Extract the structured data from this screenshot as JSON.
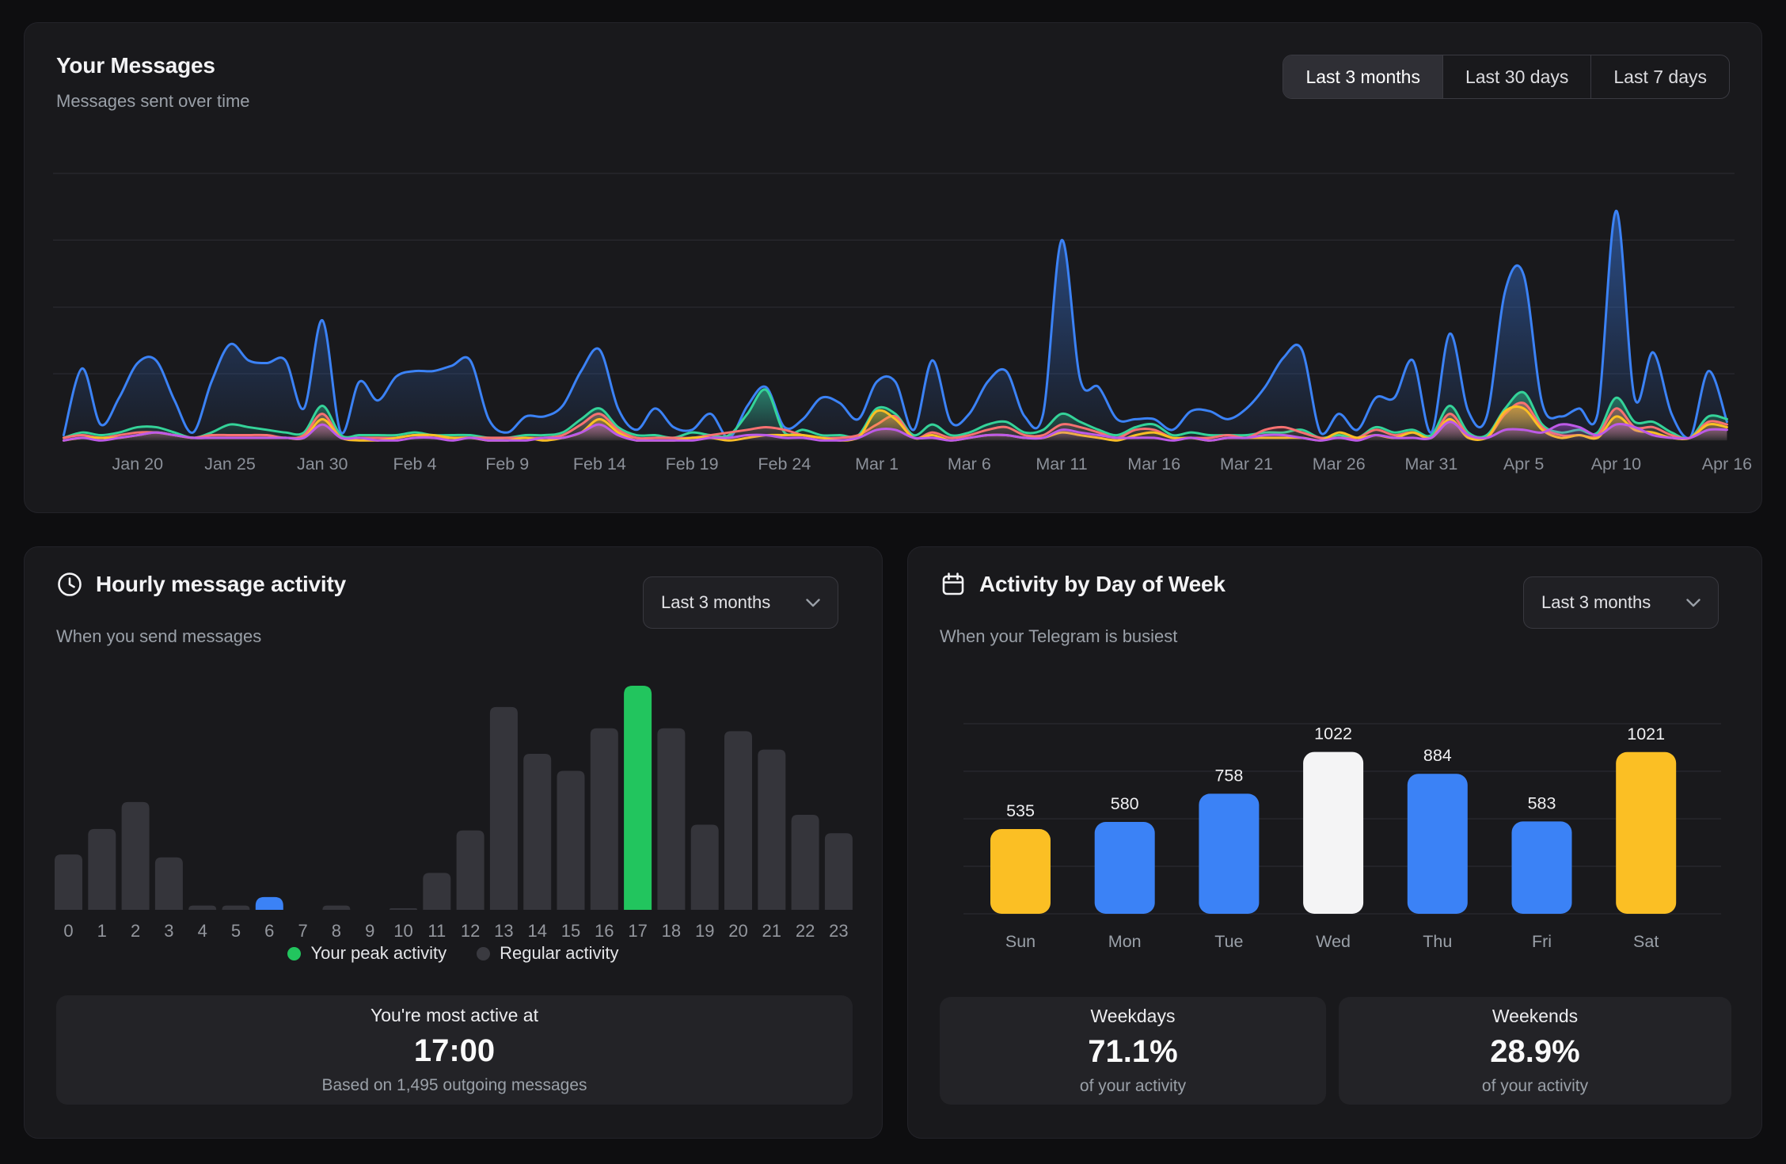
{
  "messages_panel": {
    "title": "Your Messages",
    "subtitle": "Messages sent over time",
    "time_ranges": [
      {
        "label": "Last 3 months",
        "active": true
      },
      {
        "label": "Last 30 days",
        "active": false
      },
      {
        "label": "Last 7 days",
        "active": false
      }
    ]
  },
  "hourly_panel": {
    "title": "Hourly message activity",
    "subtitle": "When you send messages",
    "dropdown_value": "Last 3 months",
    "legend": [
      {
        "label": "Your peak activity",
        "color": "#22c55e"
      },
      {
        "label": "Regular activity",
        "color": "#3a3a40"
      }
    ],
    "summary": {
      "line1": "You're most active at",
      "value": "17:00",
      "line2": "Based on 1,495 outgoing messages"
    }
  },
  "dow_panel": {
    "title": "Activity by Day of Week",
    "subtitle": "When your Telegram is busiest",
    "dropdown_value": "Last 3 months",
    "summary_cards": [
      {
        "title": "Weekdays",
        "value": "71.1%",
        "caption": "of your activity"
      },
      {
        "title": "Weekends",
        "value": "28.9%",
        "caption": "of your activity"
      }
    ]
  },
  "colors": {
    "page_bg": "#0e0e10",
    "panel_bg": "#19191c",
    "card_bg": "#232327",
    "gridline": "#27272c",
    "axis_text": "#8b9099",
    "bar_gray": "#35353b",
    "accent_blue": "#3b82f6",
    "accent_green": "#22c55e",
    "accent_amber": "#fbbf24",
    "accent_white": "#f4f4f5"
  },
  "chart_data": [
    {
      "type": "area",
      "title": "Your Messages",
      "x_start": "Jan 16",
      "x_end": "Apr 16",
      "x_step": "1 day",
      "x_ticks": [
        {
          "label": "Jan 20",
          "day": 4
        },
        {
          "label": "Jan 25",
          "day": 9
        },
        {
          "label": "Jan 30",
          "day": 14
        },
        {
          "label": "Feb 4",
          "day": 19
        },
        {
          "label": "Feb 9",
          "day": 24
        },
        {
          "label": "Feb 14",
          "day": 29
        },
        {
          "label": "Feb 19",
          "day": 34
        },
        {
          "label": "Feb 24",
          "day": 39
        },
        {
          "label": "Mar 1",
          "day": 44
        },
        {
          "label": "Mar 6",
          "day": 49
        },
        {
          "label": "Mar 11",
          "day": 54
        },
        {
          "label": "Mar 16",
          "day": 59
        },
        {
          "label": "Mar 21",
          "day": 64
        },
        {
          "label": "Mar 26",
          "day": 69
        },
        {
          "label": "Mar 31",
          "day": 74
        },
        {
          "label": "Apr 5",
          "day": 79
        },
        {
          "label": "Apr 10",
          "day": 84
        },
        {
          "label": "Apr 16",
          "day": 90
        }
      ],
      "y_axis_labels": "hidden",
      "y_gridline_step": 25,
      "ylim": [
        0,
        115
      ],
      "series": [
        {
          "name": "series-blue",
          "color": "#3b82f6",
          "values": [
            2,
            27,
            6,
            16,
            29,
            30,
            15,
            3,
            22,
            36,
            30,
            29,
            30,
            12,
            45,
            3,
            22,
            15,
            24,
            26,
            26,
            28,
            30,
            8,
            3,
            9,
            9,
            13,
            26,
            34,
            12,
            4,
            12,
            5,
            4,
            10,
            1,
            13,
            20,
            5,
            8,
            16,
            14,
            8,
            22,
            22,
            4,
            30,
            7,
            10,
            22,
            26,
            9,
            10,
            75,
            23,
            20,
            8,
            8,
            8,
            4,
            11,
            11,
            8,
            12,
            20,
            31,
            34,
            3,
            10,
            4,
            16,
            16,
            30,
            3,
            40,
            11,
            9,
            56,
            62,
            14,
            9,
            12,
            10,
            86,
            16,
            33,
            10,
            1,
            26,
            7
          ]
        },
        {
          "name": "series-green",
          "color": "#34d399",
          "values": [
            1,
            3,
            2,
            3,
            5,
            5,
            3,
            1,
            3,
            6,
            5,
            4,
            3,
            3,
            13,
            2,
            2,
            2,
            2,
            3,
            2,
            2,
            2,
            1,
            1,
            2,
            2,
            3,
            8,
            12,
            5,
            2,
            2,
            1,
            3,
            2,
            2,
            10,
            19,
            3,
            4,
            2,
            2,
            2,
            12,
            10,
            2,
            6,
            2,
            3,
            6,
            7,
            3,
            4,
            10,
            7,
            4,
            2,
            5,
            6,
            2,
            3,
            2,
            2,
            2,
            3,
            3,
            4,
            1,
            2,
            1,
            5,
            3,
            4,
            2,
            13,
            3,
            2,
            12,
            18,
            6,
            3,
            4,
            3,
            16,
            7,
            7,
            3,
            1,
            9,
            8
          ]
        },
        {
          "name": "series-pink",
          "color": "#f87171",
          "values": [
            1,
            2,
            1,
            2,
            3,
            3,
            2,
            1,
            2,
            2,
            2,
            2,
            1,
            2,
            10,
            1,
            1,
            1,
            1,
            2,
            1,
            1,
            1,
            1,
            1,
            1,
            1,
            2,
            6,
            10,
            4,
            1,
            1,
            1,
            1,
            2,
            3,
            4,
            5,
            4,
            2,
            1,
            1,
            2,
            6,
            9,
            1,
            3,
            1,
            2,
            4,
            5,
            2,
            2,
            6,
            5,
            3,
            1,
            4,
            4,
            1,
            1,
            1,
            2,
            1,
            4,
            5,
            3,
            1,
            1,
            1,
            4,
            2,
            3,
            1,
            10,
            2,
            1,
            10,
            14,
            5,
            2,
            2,
            2,
            12,
            5,
            5,
            2,
            1,
            7,
            6
          ]
        },
        {
          "name": "series-amber",
          "color": "#fbbf24",
          "values": [
            0,
            1,
            1,
            1,
            2,
            3,
            2,
            1,
            1,
            1,
            1,
            1,
            1,
            1,
            8,
            1,
            0,
            0,
            1,
            2,
            2,
            1,
            1,
            0,
            0,
            1,
            0,
            1,
            3,
            8,
            3,
            0,
            0,
            0,
            1,
            1,
            0,
            1,
            2,
            2,
            2,
            1,
            0,
            1,
            11,
            8,
            1,
            2,
            0,
            1,
            2,
            2,
            1,
            1,
            3,
            2,
            1,
            0,
            2,
            3,
            1,
            1,
            0,
            1,
            1,
            1,
            1,
            1,
            0,
            3,
            1,
            2,
            1,
            3,
            1,
            8,
            1,
            1,
            11,
            12,
            4,
            1,
            2,
            1,
            9,
            4,
            3,
            1,
            1,
            6,
            5
          ]
        },
        {
          "name": "series-purple",
          "color": "#bd5ae8",
          "values": [
            0,
            1,
            0,
            1,
            2,
            3,
            2,
            1,
            1,
            1,
            1,
            1,
            1,
            1,
            6,
            1,
            1,
            0,
            0,
            1,
            1,
            0,
            1,
            0,
            0,
            0,
            1,
            1,
            3,
            6,
            2,
            0,
            0,
            0,
            0,
            1,
            1,
            2,
            2,
            1,
            1,
            0,
            0,
            1,
            4,
            4,
            1,
            1,
            0,
            1,
            2,
            2,
            1,
            1,
            4,
            3,
            2,
            1,
            1,
            1,
            0,
            1,
            0,
            1,
            1,
            2,
            2,
            1,
            0,
            1,
            0,
            2,
            1,
            1,
            1,
            7,
            2,
            1,
            4,
            4,
            3,
            6,
            5,
            2,
            6,
            5,
            2,
            1,
            1,
            4,
            4
          ]
        }
      ]
    },
    {
      "type": "bar",
      "title": "Hourly message activity",
      "categories": [
        "0",
        "1",
        "2",
        "3",
        "4",
        "5",
        "6",
        "7",
        "8",
        "9",
        "10",
        "11",
        "12",
        "13",
        "14",
        "15",
        "16",
        "17",
        "18",
        "19",
        "20",
        "21",
        "22",
        "23"
      ],
      "values": [
        39,
        57,
        76,
        37,
        3,
        3,
        9,
        0,
        3,
        0,
        1,
        26,
        56,
        143,
        110,
        98,
        128,
        158,
        128,
        60,
        126,
        113,
        67,
        54
      ],
      "total_messages": 1495,
      "peak_hour": 17,
      "highlight_colors": {
        "17": "#22c55e",
        "6": "#3b82f6"
      },
      "default_color": "#35353b",
      "ylabel": "",
      "xlabel": "",
      "grid": false
    },
    {
      "type": "bar",
      "title": "Activity by Day of Week",
      "categories": [
        "Sun",
        "Mon",
        "Tue",
        "Wed",
        "Thu",
        "Fri",
        "Sat"
      ],
      "values": [
        535,
        580,
        758,
        1022,
        884,
        583,
        1021
      ],
      "value_labels": [
        "535",
        "580",
        "758",
        "1022",
        "884",
        "583",
        "1021"
      ],
      "bar_colors": [
        "#fbbf24",
        "#3b82f6",
        "#3b82f6",
        "#f4f4f5",
        "#3b82f6",
        "#3b82f6",
        "#fbbf24"
      ],
      "ylim": [
        0,
        1200
      ],
      "y_gridline_step": 300,
      "grid": true
    }
  ]
}
